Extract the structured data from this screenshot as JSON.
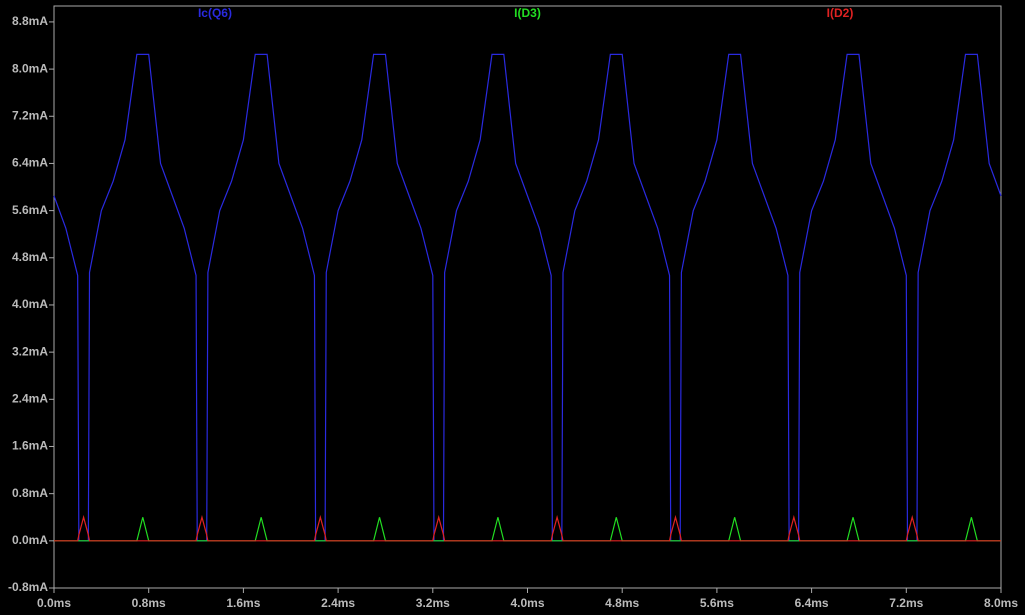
{
  "chart_data": {
    "type": "line",
    "x": [
      0,
      0.1,
      0.2,
      0.21,
      0.25,
      0.29,
      0.3,
      0.4,
      0.5,
      0.6,
      0.7,
      0.75,
      0.8,
      0.9,
      1,
      1.1,
      1.2,
      1.21,
      1.25,
      1.29,
      1.3,
      1.4,
      1.5,
      1.6,
      1.7,
      1.75,
      1.8,
      1.9,
      2,
      2.1,
      2.2,
      2.21,
      2.25,
      2.29,
      2.3,
      2.4,
      2.5,
      2.6,
      2.7,
      2.75,
      2.8,
      2.9,
      3,
      3.1,
      3.2,
      3.21,
      3.25,
      3.29,
      3.3,
      3.4,
      3.5,
      3.6,
      3.7,
      3.75,
      3.8,
      3.9,
      4,
      4.1,
      4.2,
      4.21,
      4.25,
      4.29,
      4.3,
      4.4,
      4.5,
      4.6,
      4.7,
      4.75,
      4.8,
      4.9,
      5,
      5.1,
      5.2,
      5.21,
      5.25,
      5.29,
      5.3,
      5.4,
      5.5,
      5.6,
      5.7,
      5.75,
      5.8,
      5.9,
      6,
      6.1,
      6.2,
      6.21,
      6.25,
      6.29,
      6.3,
      6.4,
      6.5,
      6.6,
      6.7,
      6.75,
      6.8,
      6.9,
      7,
      7.1,
      7.2,
      7.21,
      7.25,
      7.29,
      7.3,
      7.4,
      7.5,
      7.6,
      7.7,
      7.75,
      7.8,
      7.9,
      8
    ],
    "series": [
      {
        "name": "Ic(Q6)",
        "color": "#2a2ae0",
        "values": [
          5.85,
          5.3,
          4.5,
          0,
          0,
          0,
          4.55,
          5.6,
          6.1,
          6.8,
          8.25,
          8.25,
          8.25,
          6.4,
          5.85,
          5.3,
          4.5,
          0,
          0,
          0,
          4.55,
          5.6,
          6.1,
          6.8,
          8.25,
          8.25,
          8.25,
          6.4,
          5.85,
          5.3,
          4.5,
          0,
          0,
          0,
          4.55,
          5.6,
          6.1,
          6.8,
          8.25,
          8.25,
          8.25,
          6.4,
          5.85,
          5.3,
          4.5,
          0,
          0,
          0,
          4.55,
          5.6,
          6.1,
          6.8,
          8.25,
          8.25,
          8.25,
          6.4,
          5.85,
          5.3,
          4.5,
          0,
          0,
          0,
          4.55,
          5.6,
          6.1,
          6.8,
          8.25,
          8.25,
          8.25,
          6.4,
          5.85,
          5.3,
          4.5,
          0,
          0,
          0,
          4.55,
          5.6,
          6.1,
          6.8,
          8.25,
          8.25,
          8.25,
          6.4,
          5.85,
          5.3,
          4.5,
          0,
          0,
          0,
          4.55,
          5.6,
          6.1,
          6.8,
          8.25,
          8.25,
          8.25,
          6.4,
          5.85,
          5.3,
          4.5,
          0,
          0,
          0,
          4.55,
          5.6,
          6.1,
          6.8,
          8.25,
          8.25,
          8.25,
          6.4,
          5.85
        ]
      },
      {
        "name": "I(D3)",
        "color": "#22dd22",
        "values": [
          0,
          0,
          0,
          0,
          0,
          0,
          0,
          0,
          0,
          0,
          0,
          0.4,
          0,
          0,
          0,
          0,
          0,
          0,
          0,
          0,
          0,
          0,
          0,
          0,
          0,
          0.4,
          0,
          0,
          0,
          0,
          0,
          0,
          0,
          0,
          0,
          0,
          0,
          0,
          0,
          0.4,
          0,
          0,
          0,
          0,
          0,
          0,
          0,
          0,
          0,
          0,
          0,
          0,
          0,
          0.4,
          0,
          0,
          0,
          0,
          0,
          0,
          0,
          0,
          0,
          0,
          0,
          0,
          0,
          0.4,
          0,
          0,
          0,
          0,
          0,
          0,
          0,
          0,
          0,
          0,
          0,
          0,
          0,
          0.4,
          0,
          0,
          0,
          0,
          0,
          0,
          0,
          0,
          0,
          0,
          0,
          0,
          0,
          0.4,
          0,
          0,
          0,
          0,
          0,
          0,
          0,
          0,
          0,
          0,
          0,
          0,
          0,
          0.4,
          0,
          0,
          0
        ]
      },
      {
        "name": "I(D2)",
        "color": "#e02222",
        "values": [
          0,
          0,
          0,
          0.1,
          0.4,
          0.1,
          0,
          0,
          0,
          0,
          0,
          0,
          0,
          0,
          0,
          0,
          0,
          0.1,
          0.4,
          0.1,
          0,
          0,
          0,
          0,
          0,
          0,
          0,
          0,
          0,
          0,
          0,
          0.1,
          0.4,
          0.1,
          0,
          0,
          0,
          0,
          0,
          0,
          0,
          0,
          0,
          0,
          0,
          0.1,
          0.4,
          0.1,
          0,
          0,
          0,
          0,
          0,
          0,
          0,
          0,
          0,
          0,
          0,
          0.1,
          0.4,
          0.1,
          0,
          0,
          0,
          0,
          0,
          0,
          0,
          0,
          0,
          0,
          0,
          0.1,
          0.4,
          0.1,
          0,
          0,
          0,
          0,
          0,
          0,
          0,
          0,
          0,
          0,
          0,
          0.1,
          0.4,
          0.1,
          0,
          0,
          0,
          0,
          0,
          0,
          0,
          0,
          0,
          0,
          0,
          0.1,
          0.4,
          0.1,
          0,
          0,
          0,
          0,
          0,
          0,
          0,
          0,
          0
        ]
      }
    ],
    "xlim": [
      0,
      8
    ],
    "ylim": [
      -0.8,
      9.07
    ],
    "xticks": [
      {
        "value": 0,
        "label": "0.0ms"
      },
      {
        "value": 0.8,
        "label": "0.8ms"
      },
      {
        "value": 1.6,
        "label": "1.6ms"
      },
      {
        "value": 2.4,
        "label": "2.4ms"
      },
      {
        "value": 3.2,
        "label": "3.2ms"
      },
      {
        "value": 4,
        "label": "4.0ms"
      },
      {
        "value": 4.8,
        "label": "4.8ms"
      },
      {
        "value": 5.6,
        "label": "5.6ms"
      },
      {
        "value": 6.4,
        "label": "6.4ms"
      },
      {
        "value": 7.2,
        "label": "7.2ms"
      },
      {
        "value": 8,
        "label": "8.0ms"
      }
    ],
    "yticks": [
      {
        "value": -0.8,
        "label": "-0.8mA"
      },
      {
        "value": 0,
        "label": "0.0mA"
      },
      {
        "value": 0.8,
        "label": "0.8mA"
      },
      {
        "value": 1.6,
        "label": "1.6mA"
      },
      {
        "value": 2.4,
        "label": "2.4mA"
      },
      {
        "value": 3.2,
        "label": "3.2mA"
      },
      {
        "value": 4,
        "label": "4.0mA"
      },
      {
        "value": 4.8,
        "label": "4.8mA"
      },
      {
        "value": 5.6,
        "label": "5.6mA"
      },
      {
        "value": 6.4,
        "label": "6.4mA"
      },
      {
        "value": 7.2,
        "label": "7.2mA"
      },
      {
        "value": 8,
        "label": "8.0mA"
      },
      {
        "value": 8.8,
        "label": "8.8mA"
      }
    ],
    "grid": false
  }
}
